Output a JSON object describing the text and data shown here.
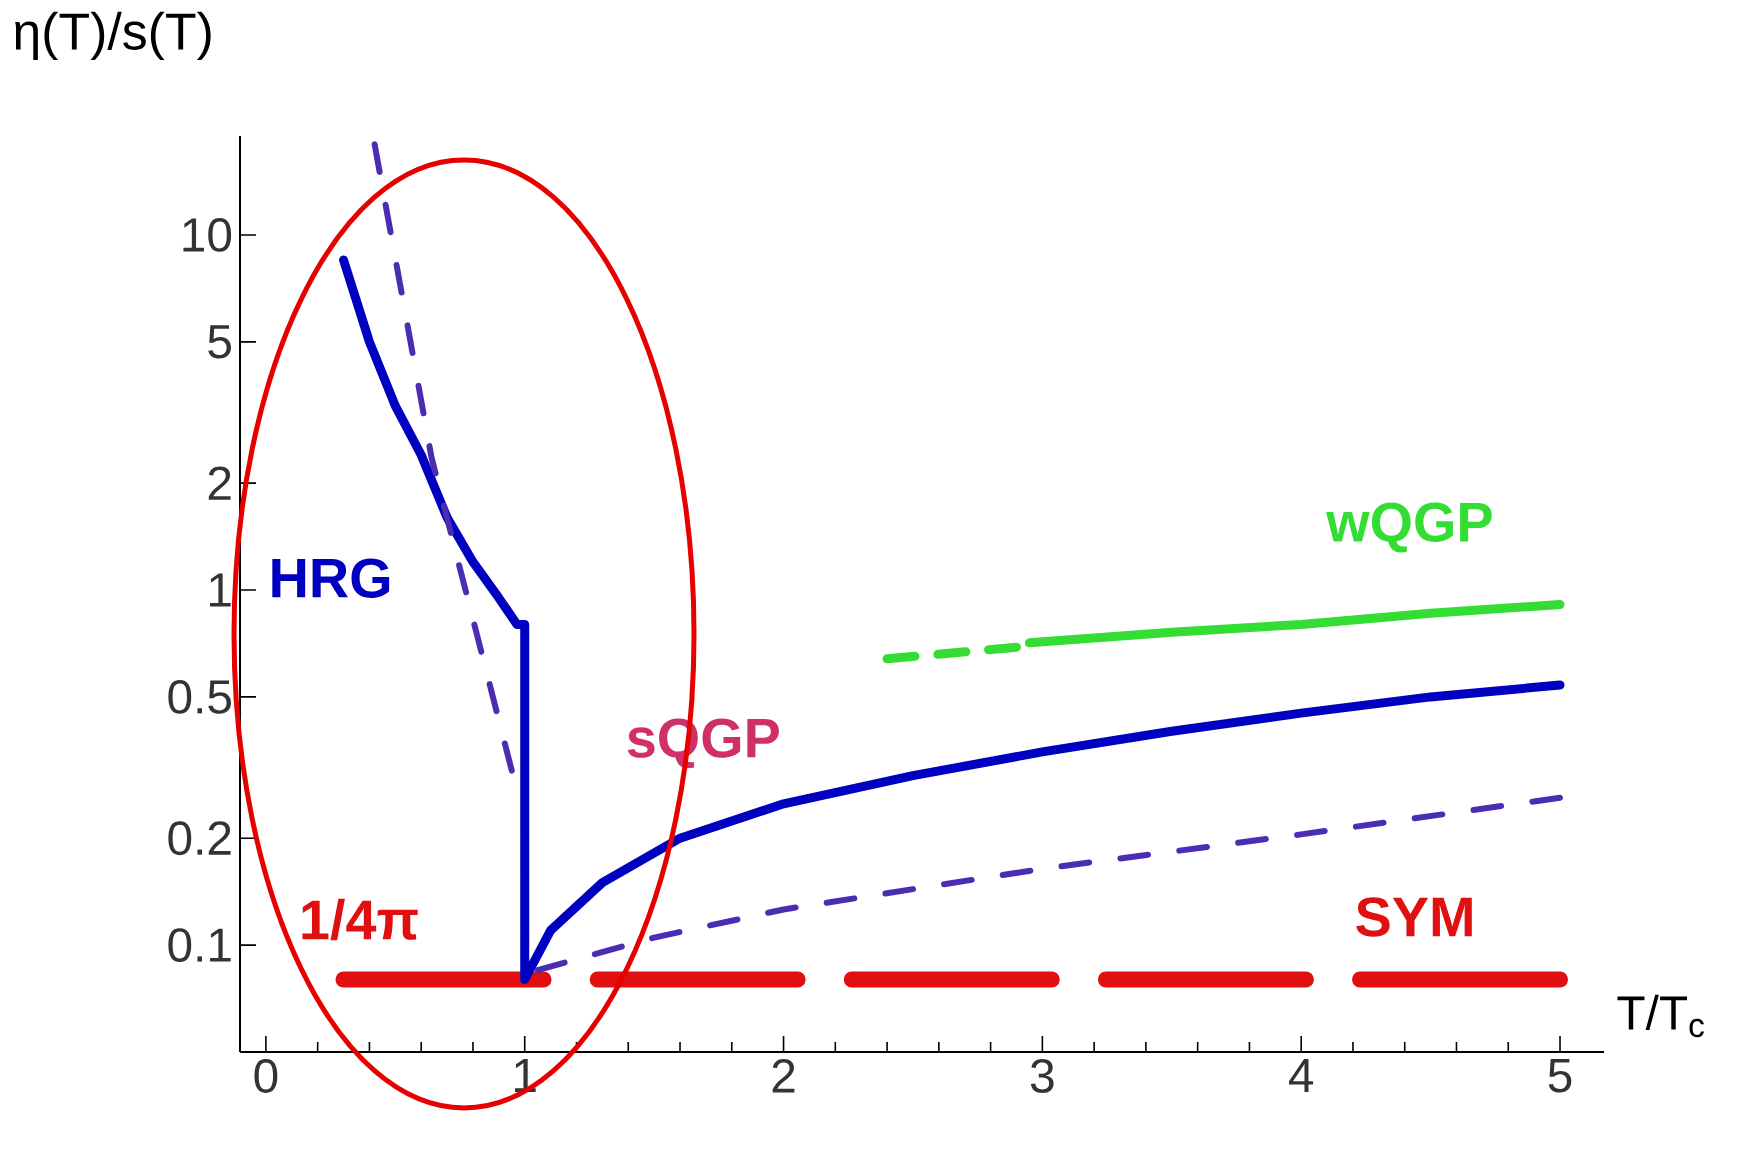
{
  "chart_data": {
    "type": "line",
    "ylabel": "η(T)/s(T)",
    "xlabel": "T/T$_{c}$",
    "log": "y",
    "xlim": [
      -0.1,
      5.17
    ],
    "ylim": [
      0.05,
      19
    ],
    "xticks": [
      0,
      1,
      2,
      3,
      4,
      5
    ],
    "yticks": [
      0.1,
      0.2,
      0.5,
      1,
      2,
      5,
      10
    ],
    "series": [
      {
        "color": "#e01010",
        "line_style": "dashed",
        "x": [
          0.3,
          5
        ],
        "values": [
          0.08,
          0.08
        ]
      },
      {
        "color": "#0000c0",
        "line_style": "solid",
        "x": [
          0.3,
          0.4,
          0.5,
          0.6,
          0.7,
          0.8,
          0.9,
          0.97,
          1,
          1,
          1.1,
          1.3,
          1.6,
          2,
          2.5,
          3,
          3.5,
          4,
          4.5,
          5
        ],
        "values": [
          8.5,
          5,
          3.3,
          2.4,
          1.6,
          1.2,
          0.95,
          0.8,
          0.8,
          0.08,
          0.11,
          0.15,
          0.2,
          0.25,
          0.3,
          0.35,
          0.4,
          0.45,
          0.5,
          0.54
        ]
      },
      {
        "color": "#4b2db4",
        "line_style": "dashed",
        "x": [
          0.42,
          0.64,
          0.95
        ],
        "values": [
          18,
          2.36,
          0.31
        ]
      },
      {
        "color": "#4b2db4",
        "line_style": "dashed",
        "x": [
          1.05,
          1.5,
          2,
          3,
          4,
          5
        ],
        "values": [
          0.085,
          0.105,
          0.126,
          0.164,
          0.205,
          0.26
        ]
      },
      {
        "color": "#33dd33",
        "line_style": "dashed",
        "x": [
          2.4,
          2.9
        ],
        "values": [
          0.64,
          0.69
        ]
      },
      {
        "color": "#33dd33",
        "line_style": "solid",
        "x": [
          2.95,
          3.5,
          4,
          4.5,
          5
        ],
        "values": [
          0.71,
          0.76,
          0.8,
          0.86,
          0.91
        ]
      }
    ],
    "annotations": [
      "HRG",
      "1/4π",
      "sQGP",
      "wQGP",
      "SYM"
    ]
  }
}
